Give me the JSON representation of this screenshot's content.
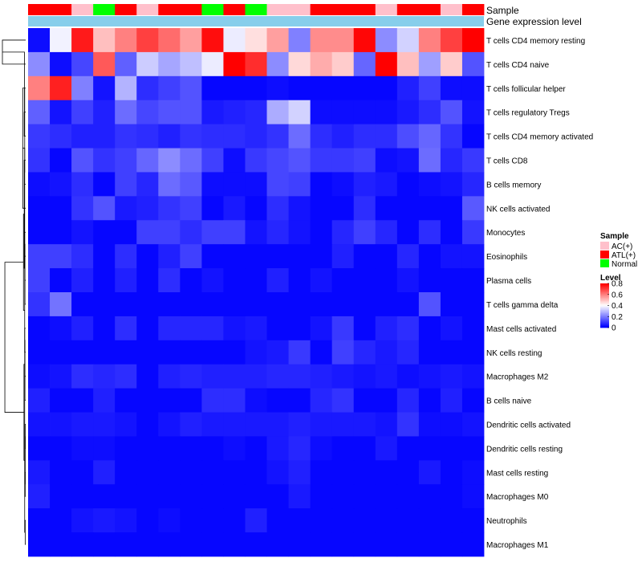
{
  "chart_data": {
    "type": "heatmap",
    "title": "",
    "annotation_labels": {
      "sample": "Sample",
      "gene": "Gene expression level"
    },
    "legend_sample": {
      "title": "Sample",
      "items": [
        {
          "label": "AC(+)",
          "color": "#ffc0cb"
        },
        {
          "label": "ATL(+)",
          "color": "#ff0000"
        },
        {
          "label": "Normal",
          "color": "#00ff00"
        }
      ]
    },
    "legend_level": {
      "title": "Level",
      "ticks": [
        "0.8",
        "0.6",
        "0.4",
        "0.2",
        "0"
      ],
      "tick_values": [
        0.8,
        0.6,
        0.4,
        0.2,
        0
      ],
      "range": [
        0,
        0.8
      ]
    },
    "color_scale": {
      "low": "#0000ff",
      "mid": "#ffffff",
      "high": "#ff0000",
      "midpoint": 0.4
    },
    "gene_bar_color": "#87ceeb",
    "sample_groups": [
      "ATL(+)",
      "ATL(+)",
      "AC(+)",
      "Normal",
      "ATL(+)",
      "AC(+)",
      "ATL(+)",
      "ATL(+)",
      "Normal",
      "ATL(+)",
      "Normal",
      "AC(+)",
      "AC(+)",
      "ATL(+)",
      "ATL(+)",
      "ATL(+)",
      "AC(+)",
      "ATL(+)",
      "ATL(+)",
      "AC(+)",
      "ATL(+)"
    ],
    "rows": [
      "T cells CD4 memory resting",
      "T cells CD4 naive",
      "T cells follicular helper",
      "T cells regulatory  Tregs",
      "T cells CD4 memory activated",
      "T cells CD8",
      "B cells memory",
      "NK cells activated",
      "Monocytes",
      "Eosinophils",
      "Plasma cells",
      "T cells gamma delta",
      "Mast cells activated",
      "NK cells resting",
      "Macrophages M2",
      "B cells naive",
      "Dendritic cells activated",
      "Dendritic cells resting",
      "Mast cells resting",
      "Macrophages M0",
      "Neutrophils",
      "Macrophages M1"
    ],
    "values": [
      [
        0.02,
        0.38,
        0.76,
        0.5,
        0.6,
        0.7,
        0.63,
        0.55,
        0.78,
        0.37,
        0.45,
        0.55,
        0.2,
        0.58,
        0.58,
        0.79,
        0.22,
        0.33,
        0.6,
        0.7,
        0.8
      ],
      [
        0.22,
        0.02,
        0.11,
        0.66,
        0.15,
        0.32,
        0.26,
        0.3,
        0.37,
        0.8,
        0.73,
        0.22,
        0.46,
        0.53,
        0.48,
        0.16,
        0.8,
        0.5,
        0.25,
        0.48,
        0.13
      ],
      [
        0.6,
        0.75,
        0.2,
        0.03,
        0.28,
        0.07,
        0.1,
        0.13,
        0.01,
        0.01,
        0.01,
        0.02,
        0.01,
        0.01,
        0.01,
        0.01,
        0.01,
        0.05,
        0.1,
        0.02,
        0.02
      ],
      [
        0.15,
        0.03,
        0.1,
        0.05,
        0.17,
        0.11,
        0.13,
        0.13,
        0.04,
        0.05,
        0.06,
        0.27,
        0.33,
        0.02,
        0.02,
        0.02,
        0.02,
        0.04,
        0.07,
        0.13,
        0.03
      ],
      [
        0.09,
        0.07,
        0.05,
        0.05,
        0.08,
        0.07,
        0.05,
        0.08,
        0.07,
        0.07,
        0.06,
        0.08,
        0.17,
        0.07,
        0.05,
        0.07,
        0.07,
        0.12,
        0.16,
        0.08,
        0.01
      ],
      [
        0.08,
        0.01,
        0.13,
        0.08,
        0.1,
        0.16,
        0.22,
        0.17,
        0.1,
        0.02,
        0.09,
        0.11,
        0.13,
        0.09,
        0.09,
        0.1,
        0.02,
        0.03,
        0.17,
        0.06,
        0.09
      ],
      [
        0.02,
        0.03,
        0.07,
        0.01,
        0.1,
        0.06,
        0.17,
        0.14,
        0.02,
        0.02,
        0.02,
        0.11,
        0.1,
        0.01,
        0.02,
        0.05,
        0.04,
        0.01,
        0.02,
        0.03,
        0.06
      ],
      [
        0.01,
        0.01,
        0.08,
        0.13,
        0.04,
        0.05,
        0.08,
        0.1,
        0.01,
        0.04,
        0.01,
        0.07,
        0.03,
        0.01,
        0.01,
        0.07,
        0.01,
        0.01,
        0.01,
        0.01,
        0.14
      ],
      [
        0.01,
        0.01,
        0.03,
        0.01,
        0.01,
        0.1,
        0.1,
        0.07,
        0.1,
        0.1,
        0.03,
        0.06,
        0.03,
        0.01,
        0.06,
        0.1,
        0.06,
        0.01,
        0.07,
        0.01,
        0.09
      ],
      [
        0.1,
        0.1,
        0.07,
        0.01,
        0.07,
        0.01,
        0.05,
        0.1,
        0.01,
        0.01,
        0.01,
        0.01,
        0.01,
        0.01,
        0.05,
        0.01,
        0.01,
        0.06,
        0.01,
        0.03,
        0.03
      ],
      [
        0.1,
        0.01,
        0.05,
        0.01,
        0.05,
        0.01,
        0.07,
        0.01,
        0.03,
        0.01,
        0.01,
        0.05,
        0.01,
        0.03,
        0.01,
        0.01,
        0.01,
        0.03,
        0.01,
        0.01,
        0.01
      ],
      [
        0.08,
        0.18,
        0.01,
        0.01,
        0.01,
        0.01,
        0.01,
        0.01,
        0.01,
        0.01,
        0.01,
        0.01,
        0.01,
        0.01,
        0.01,
        0.01,
        0.01,
        0.01,
        0.13,
        0.01,
        0.01
      ],
      [
        0.01,
        0.02,
        0.05,
        0.01,
        0.07,
        0.01,
        0.06,
        0.06,
        0.06,
        0.03,
        0.04,
        0.01,
        0.01,
        0.03,
        0.09,
        0.01,
        0.05,
        0.07,
        0.01,
        0.03,
        0.01
      ],
      [
        0.01,
        0.01,
        0.01,
        0.01,
        0.01,
        0.01,
        0.01,
        0.01,
        0.01,
        0.01,
        0.03,
        0.04,
        0.09,
        0.01,
        0.1,
        0.06,
        0.04,
        0.06,
        0.01,
        0.01,
        0.01
      ],
      [
        0.02,
        0.03,
        0.07,
        0.06,
        0.07,
        0.01,
        0.05,
        0.06,
        0.05,
        0.05,
        0.05,
        0.06,
        0.06,
        0.05,
        0.04,
        0.03,
        0.04,
        0.02,
        0.03,
        0.04,
        0.03
      ],
      [
        0.05,
        0.01,
        0.01,
        0.05,
        0.01,
        0.01,
        0.01,
        0.01,
        0.07,
        0.07,
        0.02,
        0.01,
        0.01,
        0.06,
        0.08,
        0.01,
        0.01,
        0.06,
        0.01,
        0.05,
        0.01
      ],
      [
        0.03,
        0.03,
        0.04,
        0.04,
        0.03,
        0.01,
        0.03,
        0.05,
        0.04,
        0.04,
        0.04,
        0.04,
        0.05,
        0.04,
        0.04,
        0.04,
        0.03,
        0.08,
        0.02,
        0.02,
        0.03
      ],
      [
        0.01,
        0.01,
        0.02,
        0.02,
        0.01,
        0.01,
        0.01,
        0.01,
        0.01,
        0.02,
        0.01,
        0.04,
        0.06,
        0.02,
        0.01,
        0.01,
        0.04,
        0.01,
        0.01,
        0.01,
        0.01
      ],
      [
        0.04,
        0.01,
        0.01,
        0.05,
        0.01,
        0.01,
        0.01,
        0.01,
        0.01,
        0.01,
        0.01,
        0.03,
        0.05,
        0.01,
        0.01,
        0.01,
        0.01,
        0.01,
        0.04,
        0.01,
        0.02
      ],
      [
        0.05,
        0.01,
        0.01,
        0.01,
        0.01,
        0.01,
        0.01,
        0.01,
        0.01,
        0.01,
        0.01,
        0.01,
        0.04,
        0.01,
        0.01,
        0.01,
        0.01,
        0.01,
        0.01,
        0.01,
        0.02
      ],
      [
        0.01,
        0.01,
        0.03,
        0.04,
        0.03,
        0.01,
        0.02,
        0.01,
        0.01,
        0.01,
        0.05,
        0.01,
        0.01,
        0.01,
        0.01,
        0.01,
        0.01,
        0.01,
        0.01,
        0.01,
        0.01
      ],
      [
        0.01,
        0.01,
        0.01,
        0.01,
        0.01,
        0.01,
        0.01,
        0.01,
        0.01,
        0.01,
        0.01,
        0.01,
        0.01,
        0.01,
        0.01,
        0.01,
        0.01,
        0.01,
        0.01,
        0.01,
        0.01
      ]
    ],
    "dendrogram": [
      [
        0,
        1,
        0.95
      ],
      [
        3,
        4,
        0.06
      ],
      [
        5,
        6,
        0.05
      ],
      [
        2,
        7,
        0.12
      ],
      [
        8,
        9,
        0.04
      ],
      [
        10,
        11,
        0.03
      ],
      [
        12,
        13,
        0.04
      ],
      [
        14,
        15,
        0.03
      ],
      [
        16,
        17,
        0.02
      ],
      [
        18,
        19,
        0.02
      ],
      [
        20,
        21,
        0.02
      ],
      [
        22,
        23,
        0.05
      ],
      [
        24,
        25,
        0.04
      ],
      [
        26,
        27,
        0.03
      ],
      [
        28,
        29,
        0.03
      ],
      [
        30,
        31,
        0.02
      ],
      [
        32,
        33,
        0.04
      ],
      [
        34,
        35,
        0.06
      ],
      [
        36,
        37,
        0.07
      ],
      [
        38,
        39,
        0.09
      ],
      [
        40,
        41,
        0.85
      ]
    ]
  }
}
